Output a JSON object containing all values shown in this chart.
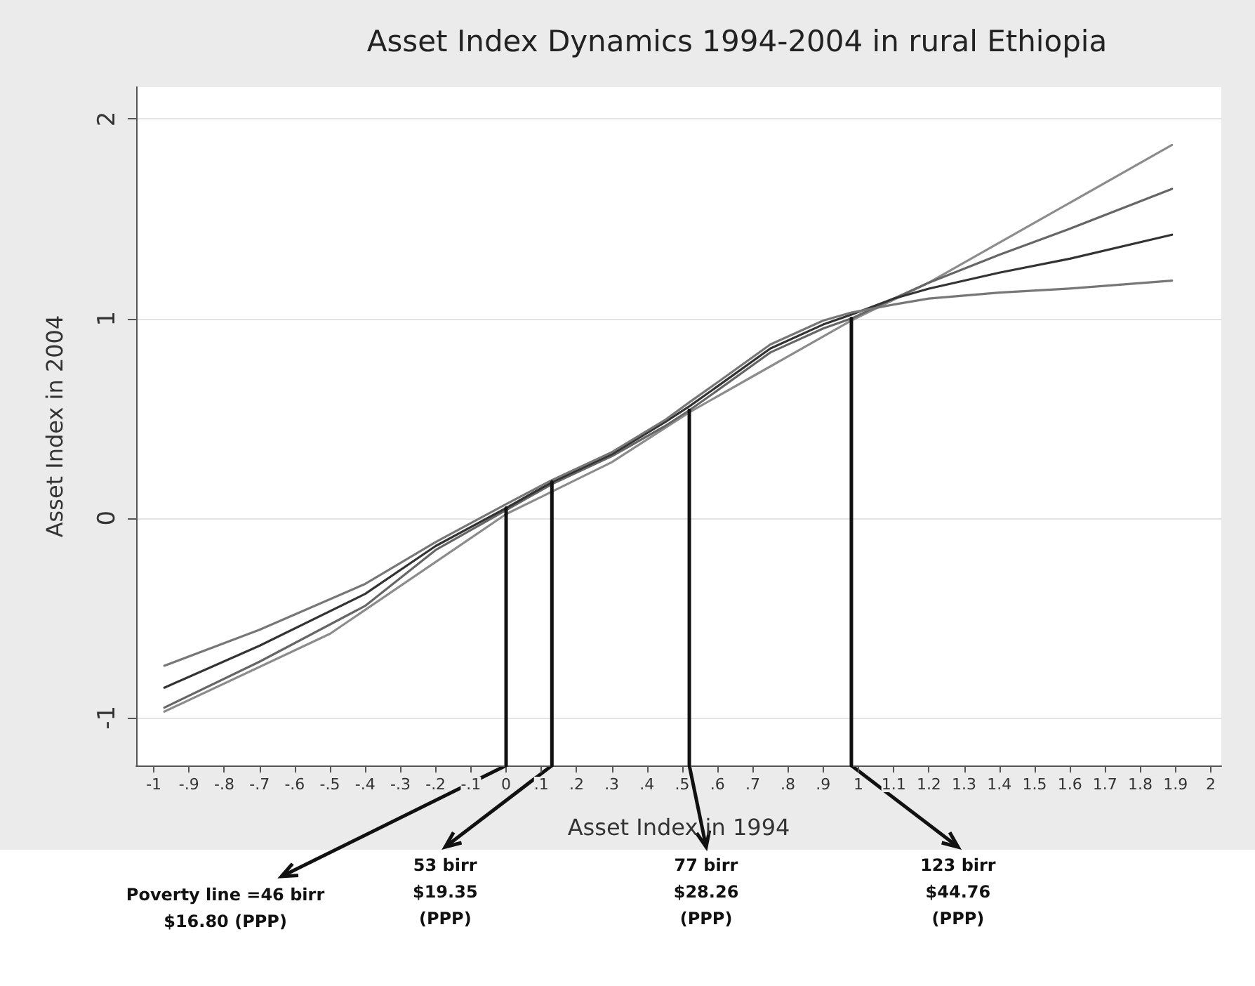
{
  "chart_data": {
    "type": "line",
    "title": "Asset Index Dynamics 1994-2004 in rural Ethiopia",
    "xlabel": "Asset Index in 1994",
    "ylabel": "Asset Index in 2004",
    "xlim": [
      -1.05,
      2.03
    ],
    "ylim": [
      -1.24,
      2.16
    ],
    "xticks": [
      -1,
      {
        "value": -0.9,
        "label": "-.9"
      },
      {
        "value": -0.8,
        "label": "-.8"
      },
      {
        "value": -0.7,
        "label": "-.7"
      },
      {
        "value": -0.6,
        "label": "-.6"
      },
      {
        "value": -0.5,
        "label": "-.5"
      },
      {
        "value": -0.4,
        "label": "-.4"
      },
      {
        "value": -0.3,
        "label": "-.3"
      },
      {
        "value": -0.2,
        "label": "-.2"
      },
      {
        "value": -0.1,
        "label": "-.1"
      },
      0,
      {
        "value": 0.1,
        "label": ".1"
      },
      {
        "value": 0.2,
        "label": ".2"
      },
      {
        "value": 0.3,
        "label": ".3"
      },
      {
        "value": 0.4,
        "label": ".4"
      },
      {
        "value": 0.5,
        "label": ".5"
      },
      {
        "value": 0.6,
        "label": ".6"
      },
      {
        "value": 0.7,
        "label": ".7"
      },
      {
        "value": 0.8,
        "label": ".8"
      },
      {
        "value": 0.9,
        "label": ".9"
      },
      1,
      1.1,
      1.2,
      1.3,
      1.4,
      1.5,
      1.6,
      1.7,
      1.8,
      1.9,
      2
    ],
    "yticks": [
      -1,
      0,
      1,
      2
    ],
    "grid": "y",
    "marker": "none",
    "line_style": "solid",
    "series": [
      {
        "color": "#8c8c8c",
        "x": [
          -0.97,
          -0.5,
          0,
          0.3,
          0.52,
          0.75,
          0.98,
          1.2,
          1.5,
          1.89
        ],
        "values": [
          -0.97,
          -0.58,
          0.02,
          0.28,
          0.53,
          0.76,
          0.99,
          1.18,
          1.48,
          1.87
        ]
      },
      {
        "color": "#666666",
        "x": [
          -0.97,
          -0.7,
          -0.4,
          -0.2,
          0,
          0.13,
          0.3,
          0.45,
          0.52,
          0.6,
          0.75,
          0.9,
          0.98,
          1.1,
          1.2,
          1.4,
          1.6,
          1.89
        ],
        "values": [
          -0.95,
          -0.72,
          -0.44,
          -0.16,
          0.04,
          0.17,
          0.31,
          0.46,
          0.54,
          0.64,
          0.83,
          0.95,
          1.0,
          1.1,
          1.18,
          1.32,
          1.45,
          1.65
        ]
      },
      {
        "color": "#333333",
        "x": [
          -0.97,
          -0.7,
          -0.4,
          -0.2,
          0,
          0.13,
          0.3,
          0.45,
          0.52,
          0.6,
          0.75,
          0.9,
          0.98,
          1.1,
          1.2,
          1.4,
          1.6,
          1.89
        ],
        "values": [
          -0.85,
          -0.64,
          -0.38,
          -0.14,
          0.05,
          0.18,
          0.32,
          0.48,
          0.56,
          0.66,
          0.85,
          0.97,
          1.02,
          1.1,
          1.15,
          1.23,
          1.3,
          1.42
        ]
      },
      {
        "color": "#777777",
        "x": [
          -0.97,
          -0.7,
          -0.4,
          -0.2,
          0,
          0.13,
          0.3,
          0.45,
          0.52,
          0.6,
          0.75,
          0.9,
          0.98,
          1.1,
          1.2,
          1.4,
          1.6,
          1.89
        ],
        "values": [
          -0.74,
          -0.56,
          -0.33,
          -0.12,
          0.07,
          0.19,
          0.33,
          0.49,
          0.58,
          0.68,
          0.87,
          0.99,
          1.03,
          1.07,
          1.1,
          1.13,
          1.15,
          1.19
        ]
      },
      {
        "color": "#111111",
        "x": [
          0,
          0
        ],
        "values": [
          -1.24,
          0.05
        ]
      },
      {
        "color": "#111111",
        "x": [
          0.13,
          0.13
        ],
        "values": [
          -1.24,
          0.18
        ]
      },
      {
        "color": "#111111",
        "x": [
          0.52,
          0.52
        ],
        "values": [
          -1.24,
          0.54
        ]
      },
      {
        "color": "#111111",
        "x": [
          0.98,
          0.98
        ],
        "values": [
          -1.24,
          1.0
        ]
      }
    ],
    "annotations": [
      "Poverty line =46 birr\n$16.80 (PPP)",
      "53 birr\n$19.35\n(PPP)",
      "77 birr\n$28.26\n(PPP)",
      "123 birr\n$44.76\n(PPP)"
    ]
  }
}
